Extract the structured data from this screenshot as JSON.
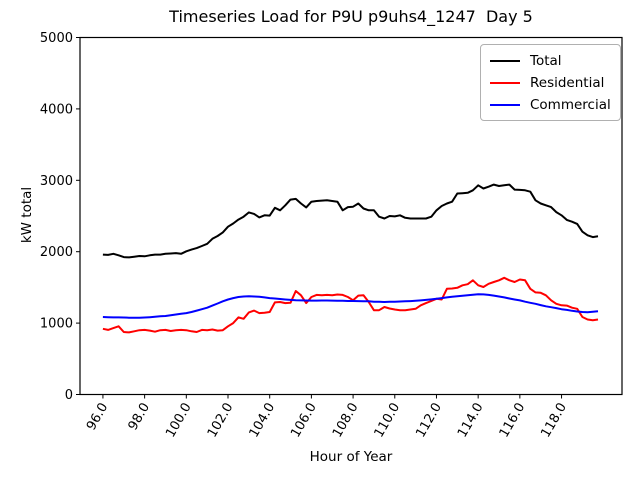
{
  "title": "Timeseries Load for P9U p9uhs4_1247  Day 5",
  "chart_data": {
    "type": "line",
    "title": "Timeseries Load for P9U p9uhs4_1247  Day 5",
    "xlabel": "Hour of Year",
    "ylabel": "kW total",
    "xlim": [
      94.9,
      120.9
    ],
    "ylim": [
      0,
      5000
    ],
    "grid": false,
    "legend_position": "upper right",
    "xticks": [
      96,
      98,
      100,
      102,
      104,
      106,
      108,
      110,
      112,
      114,
      116,
      118
    ],
    "xtick_labels": [
      "96.0",
      "98.0",
      "100.0",
      "102.0",
      "104.0",
      "106.0",
      "108.0",
      "110.0",
      "112.0",
      "114.0",
      "116.0",
      "118.0"
    ],
    "yticks": [
      0,
      1000,
      2000,
      3000,
      4000,
      5000
    ],
    "ytick_labels": [
      "0",
      "1000",
      "2000",
      "3000",
      "4000",
      "5000"
    ],
    "x": [
      96.0,
      96.25,
      96.5,
      96.75,
      97.0,
      97.25,
      97.5,
      97.75,
      98.0,
      98.25,
      98.5,
      98.75,
      99.0,
      99.25,
      99.5,
      99.75,
      100.0,
      100.25,
      100.5,
      100.75,
      101.0,
      101.25,
      101.5,
      101.75,
      102.0,
      102.25,
      102.5,
      102.75,
      103.0,
      103.25,
      103.5,
      103.75,
      104.0,
      104.25,
      104.5,
      104.75,
      105.0,
      105.25,
      105.5,
      105.75,
      106.0,
      106.25,
      106.5,
      106.75,
      107.0,
      107.25,
      107.5,
      107.75,
      108.0,
      108.25,
      108.5,
      108.75,
      109.0,
      109.25,
      109.5,
      109.75,
      110.0,
      110.25,
      110.5,
      110.75,
      111.0,
      111.25,
      111.5,
      111.75,
      112.0,
      112.25,
      112.5,
      112.75,
      113.0,
      113.25,
      113.5,
      113.75,
      114.0,
      114.25,
      114.5,
      114.75,
      115.0,
      115.25,
      115.5,
      115.75,
      116.0,
      116.25,
      116.5,
      116.75,
      117.0,
      117.25,
      117.5,
      117.75,
      118.0,
      118.25,
      118.5,
      118.75,
      119.0,
      119.25,
      119.5,
      119.75
    ],
    "series": [
      {
        "name": "Total",
        "color": "#000000",
        "values": [
          1960,
          1955,
          1970,
          1950,
          1925,
          1920,
          1930,
          1940,
          1935,
          1950,
          1960,
          1960,
          1970,
          1975,
          1980,
          1970,
          2005,
          2030,
          2050,
          2080,
          2110,
          2180,
          2220,
          2270,
          2350,
          2395,
          2450,
          2490,
          2550,
          2530,
          2480,
          2510,
          2505,
          2615,
          2580,
          2650,
          2730,
          2740,
          2675,
          2620,
          2700,
          2710,
          2715,
          2720,
          2710,
          2700,
          2580,
          2625,
          2630,
          2675,
          2605,
          2580,
          2580,
          2490,
          2465,
          2500,
          2495,
          2510,
          2475,
          2465,
          2465,
          2465,
          2465,
          2490,
          2580,
          2640,
          2675,
          2700,
          2815,
          2820,
          2825,
          2860,
          2930,
          2885,
          2910,
          2940,
          2920,
          2930,
          2940,
          2870,
          2865,
          2860,
          2840,
          2720,
          2675,
          2650,
          2625,
          2555,
          2510,
          2445,
          2420,
          2390,
          2280,
          2230,
          2205,
          2215
        ]
      },
      {
        "name": "Residential",
        "color": "#ff0000",
        "values": [
          920,
          905,
          930,
          955,
          875,
          870,
          885,
          900,
          905,
          895,
          880,
          900,
          905,
          890,
          900,
          905,
          900,
          885,
          875,
          905,
          900,
          910,
          895,
          900,
          955,
          1000,
          1080,
          1060,
          1150,
          1175,
          1140,
          1145,
          1155,
          1290,
          1295,
          1280,
          1285,
          1450,
          1390,
          1280,
          1365,
          1395,
          1390,
          1395,
          1390,
          1400,
          1395,
          1365,
          1320,
          1385,
          1390,
          1295,
          1180,
          1180,
          1225,
          1205,
          1190,
          1180,
          1180,
          1190,
          1200,
          1250,
          1280,
          1310,
          1340,
          1330,
          1480,
          1485,
          1495,
          1530,
          1545,
          1600,
          1530,
          1505,
          1550,
          1575,
          1600,
          1635,
          1600,
          1575,
          1610,
          1600,
          1480,
          1430,
          1425,
          1390,
          1320,
          1270,
          1250,
          1245,
          1215,
          1200,
          1085,
          1050,
          1040,
          1050
        ]
      },
      {
        "name": "Commercial",
        "color": "#0000ff",
        "values": [
          1085,
          1082,
          1080,
          1080,
          1078,
          1076,
          1075,
          1075,
          1078,
          1082,
          1088,
          1095,
          1100,
          1110,
          1120,
          1130,
          1140,
          1155,
          1175,
          1195,
          1215,
          1245,
          1275,
          1305,
          1330,
          1350,
          1365,
          1372,
          1375,
          1372,
          1368,
          1360,
          1350,
          1345,
          1338,
          1330,
          1325,
          1320,
          1318,
          1316,
          1315,
          1315,
          1316,
          1316,
          1315,
          1314,
          1312,
          1310,
          1310,
          1308,
          1306,
          1305,
          1300,
          1298,
          1296,
          1298,
          1300,
          1302,
          1305,
          1308,
          1312,
          1318,
          1325,
          1332,
          1340,
          1350,
          1360,
          1368,
          1375,
          1382,
          1390,
          1398,
          1405,
          1402,
          1395,
          1385,
          1372,
          1360,
          1345,
          1330,
          1318,
          1300,
          1285,
          1270,
          1252,
          1235,
          1222,
          1210,
          1195,
          1185,
          1172,
          1162,
          1155,
          1152,
          1158,
          1165
        ]
      }
    ]
  }
}
